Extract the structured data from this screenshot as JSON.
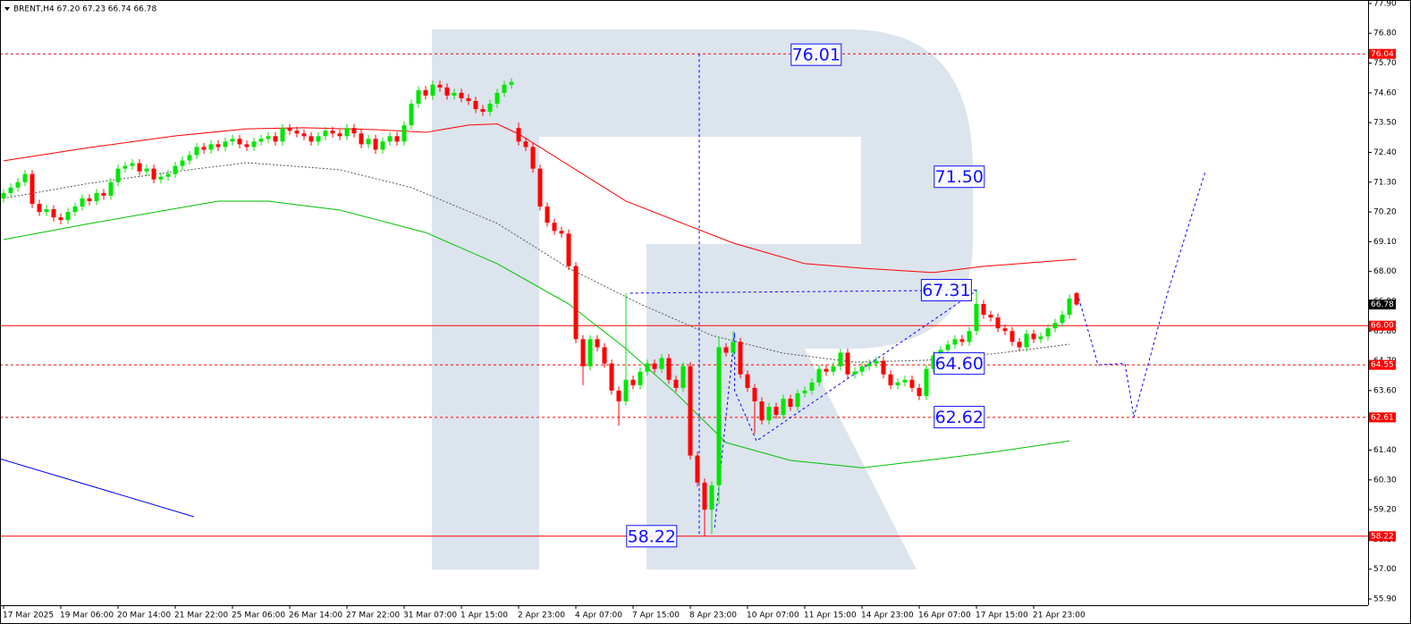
{
  "chart_data": {
    "type": "candlestick",
    "title": "BRENT,H4 67.20 67.23 66.74 66.78",
    "xlim": [
      -0.5,
      190.75
    ],
    "ylim": [
      55.67,
      78.03
    ],
    "xticks": [
      {
        "value": 0,
        "label": "17 Mar 2025"
      },
      {
        "value": 8,
        "label": "19 Mar 06:00"
      },
      {
        "value": 16,
        "label": "20 Mar 14:00"
      },
      {
        "value": 24,
        "label": "21 Mar 22:00"
      },
      {
        "value": 32,
        "label": "25 Mar 06:00"
      },
      {
        "value": 40,
        "label": "26 Mar 14:00"
      },
      {
        "value": 48,
        "label": "27 Mar 22:00"
      },
      {
        "value": 56,
        "label": "31 Mar 07:00"
      },
      {
        "value": 64,
        "label": "1 Apr 15:00"
      },
      {
        "value": 72,
        "label": "2 Apr 23:00"
      },
      {
        "value": 80,
        "label": "4 Apr 07:00"
      },
      {
        "value": 88,
        "label": "7 Apr 15:00"
      },
      {
        "value": 96,
        "label": "8 Apr 23:00"
      },
      {
        "value": 104,
        "label": "10 Apr 07:00"
      },
      {
        "value": 112,
        "label": "11 Apr 15:00"
      },
      {
        "value": 120,
        "label": "14 Apr 23:00"
      },
      {
        "value": 128,
        "label": "16 Apr 07:00"
      },
      {
        "value": 136,
        "label": "17 Apr 15:00"
      },
      {
        "value": 144,
        "label": "21 Apr 23:00"
      }
    ],
    "yticks": [
      {
        "value": 77.9,
        "label": "77.90"
      },
      {
        "value": 76.8,
        "label": "76.80"
      },
      {
        "value": 75.7,
        "label": "75.70"
      },
      {
        "value": 74.6,
        "label": "74.60"
      },
      {
        "value": 73.5,
        "label": "73.50"
      },
      {
        "value": 72.4,
        "label": "72.40"
      },
      {
        "value": 71.3,
        "label": "71.30"
      },
      {
        "value": 70.2,
        "label": "70.20"
      },
      {
        "value": 69.1,
        "label": "69.10"
      },
      {
        "value": 68.0,
        "label": "68.00"
      },
      {
        "value": 66.9,
        "label": "66.90"
      },
      {
        "value": 65.8,
        "label": "65.80"
      },
      {
        "value": 64.7,
        "label": "64.70"
      },
      {
        "value": 63.6,
        "label": "63.60"
      },
      {
        "value": 62.5,
        "label": "62.50"
      },
      {
        "value": 61.4,
        "label": "61.40"
      },
      {
        "value": 60.3,
        "label": "60.30"
      },
      {
        "value": 59.2,
        "label": "59.20"
      },
      {
        "value": 58.1,
        "label": "58.10"
      },
      {
        "value": 57.0,
        "label": "57.00"
      },
      {
        "value": 55.9,
        "label": "55.90"
      }
    ],
    "up_color": "#00e600",
    "down_color": "#ff0000",
    "candles": [
      [
        70.7,
        71.05,
        70.55,
        70.9
      ],
      [
        70.9,
        71.25,
        70.75,
        71.1
      ],
      [
        71.1,
        71.45,
        70.95,
        71.3
      ],
      [
        71.3,
        71.75,
        71.15,
        71.6
      ],
      [
        71.6,
        71.75,
        70.35,
        70.5
      ],
      [
        70.5,
        70.65,
        70.05,
        70.2
      ],
      [
        70.2,
        70.45,
        70.05,
        70.3
      ],
      [
        70.3,
        70.45,
        69.85,
        70.0
      ],
      [
        70.0,
        70.15,
        69.75,
        69.9
      ],
      [
        69.9,
        70.35,
        69.75,
        70.2
      ],
      [
        70.2,
        70.55,
        70.05,
        70.4
      ],
      [
        70.4,
        70.85,
        70.25,
        70.7
      ],
      [
        70.7,
        70.85,
        70.45,
        70.6
      ],
      [
        70.6,
        71.05,
        70.45,
        70.9
      ],
      [
        70.9,
        71.05,
        70.65,
        70.8
      ],
      [
        70.8,
        71.45,
        70.65,
        71.3
      ],
      [
        71.3,
        71.95,
        71.15,
        71.8
      ],
      [
        71.8,
        72.05,
        71.65,
        71.9
      ],
      [
        71.9,
        72.15,
        71.75,
        72.0
      ],
      [
        72.0,
        72.15,
        71.55,
        71.7
      ],
      [
        71.7,
        71.95,
        71.55,
        71.8
      ],
      [
        71.8,
        71.95,
        71.25,
        71.4
      ],
      [
        71.4,
        71.65,
        71.25,
        71.5
      ],
      [
        71.5,
        71.75,
        71.35,
        71.6
      ],
      [
        71.6,
        72.05,
        71.45,
        71.9
      ],
      [
        71.9,
        72.25,
        71.75,
        72.1
      ],
      [
        72.1,
        72.45,
        71.95,
        72.3
      ],
      [
        72.3,
        72.75,
        72.15,
        72.6
      ],
      [
        72.6,
        72.75,
        72.35,
        72.5
      ],
      [
        72.5,
        72.85,
        72.35,
        72.7
      ],
      [
        72.7,
        72.85,
        72.45,
        72.6
      ],
      [
        72.6,
        72.95,
        72.45,
        72.8
      ],
      [
        72.8,
        73.05,
        72.65,
        72.9
      ],
      [
        72.9,
        73.05,
        72.55,
        72.7
      ],
      [
        72.7,
        72.85,
        72.45,
        72.6
      ],
      [
        72.6,
        72.95,
        72.45,
        72.8
      ],
      [
        72.8,
        73.05,
        72.65,
        72.9
      ],
      [
        72.9,
        73.15,
        72.75,
        73.0
      ],
      [
        73.0,
        73.15,
        72.65,
        72.8
      ],
      [
        72.8,
        73.45,
        72.65,
        73.3
      ],
      [
        73.3,
        73.45,
        73.05,
        73.2
      ],
      [
        73.2,
        73.35,
        72.95,
        73.1
      ],
      [
        73.1,
        73.25,
        72.85,
        73.0
      ],
      [
        73.0,
        73.15,
        72.65,
        72.8
      ],
      [
        72.8,
        73.15,
        72.65,
        73.0
      ],
      [
        73.0,
        73.35,
        72.85,
        73.2
      ],
      [
        73.2,
        73.35,
        72.95,
        73.1
      ],
      [
        73.1,
        73.25,
        72.85,
        73.0
      ],
      [
        73.0,
        73.45,
        72.85,
        73.3
      ],
      [
        73.3,
        73.45,
        72.95,
        73.1
      ],
      [
        73.1,
        73.25,
        72.55,
        72.7
      ],
      [
        72.7,
        73.05,
        72.55,
        72.9
      ],
      [
        72.9,
        73.05,
        72.35,
        72.5
      ],
      [
        72.5,
        72.95,
        72.35,
        72.8
      ],
      [
        72.8,
        73.15,
        72.65,
        73.0
      ],
      [
        73.0,
        73.15,
        72.65,
        72.8
      ],
      [
        72.8,
        73.55,
        72.65,
        73.4
      ],
      [
        73.4,
        74.35,
        73.25,
        74.2
      ],
      [
        74.2,
        74.85,
        74.05,
        74.7
      ],
      [
        74.7,
        74.85,
        74.35,
        74.5
      ],
      [
        74.5,
        75.05,
        74.35,
        74.9
      ],
      [
        74.9,
        75.05,
        74.65,
        74.8
      ],
      [
        74.8,
        74.95,
        74.35,
        74.5
      ],
      [
        74.5,
        74.75,
        74.35,
        74.6
      ],
      [
        74.6,
        74.75,
        74.25,
        74.4
      ],
      [
        74.4,
        74.55,
        74.15,
        74.3
      ],
      [
        74.3,
        74.45,
        73.85,
        74.0
      ],
      [
        74.0,
        74.15,
        73.75,
        73.9
      ],
      [
        73.9,
        74.35,
        73.75,
        74.2
      ],
      [
        74.2,
        74.75,
        74.05,
        74.6
      ],
      [
        74.6,
        75.05,
        74.45,
        74.9
      ],
      [
        74.9,
        75.15,
        74.75,
        75.0
      ],
      [
        73.3,
        73.5,
        72.65,
        72.8
      ],
      [
        72.8,
        72.95,
        72.45,
        72.6
      ],
      [
        72.6,
        72.75,
        71.65,
        71.8
      ],
      [
        71.8,
        71.95,
        70.25,
        70.4
      ],
      [
        70.4,
        70.55,
        69.65,
        69.8
      ],
      [
        69.8,
        69.95,
        69.35,
        69.5
      ],
      [
        69.5,
        69.65,
        69.25,
        69.4
      ],
      [
        69.4,
        69.55,
        68.05,
        68.2
      ],
      [
        68.2,
        68.35,
        65.35,
        65.5
      ],
      [
        65.5,
        65.65,
        63.8,
        64.5
      ],
      [
        64.5,
        65.65,
        64.35,
        65.5
      ],
      [
        65.5,
        65.65,
        65.05,
        65.2
      ],
      [
        65.2,
        65.35,
        64.45,
        64.6
      ],
      [
        64.6,
        64.75,
        63.45,
        63.6
      ],
      [
        63.6,
        63.75,
        62.3,
        63.2
      ],
      [
        63.2,
        67.2,
        63.05,
        64.0
      ],
      [
        64.0,
        64.15,
        63.65,
        63.8
      ],
      [
        63.8,
        64.45,
        63.65,
        64.3
      ],
      [
        64.3,
        64.75,
        64.15,
        64.6
      ],
      [
        64.6,
        64.75,
        64.25,
        64.4
      ],
      [
        64.4,
        64.95,
        64.25,
        64.8
      ],
      [
        64.8,
        64.95,
        63.85,
        64.0
      ],
      [
        64.0,
        64.15,
        63.55,
        63.7
      ],
      [
        63.7,
        64.65,
        63.55,
        64.5
      ],
      [
        64.5,
        64.65,
        61.05,
        61.2
      ],
      [
        61.2,
        61.35,
        60.05,
        60.2
      ],
      [
        60.2,
        60.35,
        58.22,
        59.2
      ],
      [
        59.2,
        60.25,
        58.3,
        60.1
      ],
      [
        60.1,
        65.6,
        59.4,
        65.2
      ],
      [
        65.2,
        65.35,
        64.85,
        65.0
      ],
      [
        65.0,
        65.8,
        64.85,
        65.4
      ],
      [
        65.4,
        65.55,
        64.05,
        64.2
      ],
      [
        64.2,
        64.35,
        63.55,
        63.7
      ],
      [
        63.7,
        63.85,
        62.0,
        63.2
      ],
      [
        63.2,
        63.35,
        62.35,
        62.5
      ],
      [
        62.5,
        63.15,
        62.35,
        63.0
      ],
      [
        63.0,
        63.15,
        62.55,
        62.7
      ],
      [
        62.7,
        63.45,
        62.55,
        63.3
      ],
      [
        63.3,
        63.45,
        62.85,
        63.0
      ],
      [
        63.0,
        63.65,
        62.85,
        63.5
      ],
      [
        63.5,
        63.75,
        63.35,
        63.6
      ],
      [
        63.6,
        64.05,
        63.45,
        63.9
      ],
      [
        63.9,
        64.55,
        63.75,
        64.4
      ],
      [
        64.4,
        64.55,
        64.15,
        64.3
      ],
      [
        64.3,
        64.65,
        64.15,
        64.5
      ],
      [
        64.5,
        65.15,
        64.35,
        65.0
      ],
      [
        65.0,
        65.15,
        64.05,
        64.2
      ],
      [
        64.2,
        64.45,
        64.05,
        64.3
      ],
      [
        64.3,
        64.65,
        64.15,
        64.5
      ],
      [
        64.5,
        64.75,
        64.35,
        64.6
      ],
      [
        64.6,
        64.85,
        64.45,
        64.7
      ],
      [
        64.7,
        64.85,
        64.05,
        64.2
      ],
      [
        64.2,
        64.35,
        63.65,
        63.8
      ],
      [
        63.8,
        64.05,
        63.65,
        63.9
      ],
      [
        63.9,
        64.15,
        63.75,
        64.0
      ],
      [
        64.0,
        64.15,
        63.55,
        63.7
      ],
      [
        63.7,
        63.85,
        63.25,
        63.4
      ],
      [
        63.4,
        64.55,
        63.25,
        64.4
      ],
      [
        64.4,
        65.05,
        64.25,
        64.9
      ],
      [
        64.9,
        65.25,
        64.75,
        65.1
      ],
      [
        65.1,
        65.45,
        64.95,
        65.3
      ],
      [
        65.3,
        65.65,
        65.15,
        65.5
      ],
      [
        65.5,
        65.65,
        65.25,
        65.4
      ],
      [
        65.4,
        65.95,
        65.25,
        65.8
      ],
      [
        65.8,
        67.31,
        65.65,
        66.8
      ],
      [
        66.8,
        66.95,
        66.25,
        66.4
      ],
      [
        66.4,
        66.55,
        66.15,
        66.3
      ],
      [
        66.3,
        66.45,
        65.75,
        65.9
      ],
      [
        65.9,
        66.05,
        65.65,
        65.8
      ],
      [
        65.8,
        65.95,
        65.25,
        65.4
      ],
      [
        65.4,
        65.55,
        65.05,
        65.2
      ],
      [
        65.2,
        65.85,
        65.05,
        65.7
      ],
      [
        65.7,
        65.85,
        65.35,
        65.5
      ],
      [
        65.5,
        65.75,
        65.35,
        65.6
      ],
      [
        65.6,
        66.05,
        65.45,
        65.9
      ],
      [
        65.9,
        66.25,
        65.75,
        66.1
      ],
      [
        66.1,
        66.55,
        65.95,
        66.4
      ],
      [
        66.4,
        67.15,
        66.25,
        67.0
      ],
      [
        67.2,
        67.23,
        66.74,
        66.78
      ]
    ],
    "series": [
      {
        "color": "#ff0000",
        "style": "solid",
        "x": [
          0,
          12,
          24,
          34,
          42,
          52,
          59,
          65,
          69,
          72,
          80,
          87,
          95,
          102,
          112,
          120,
          130,
          137,
          150
        ],
        "values": [
          72.09,
          72.58,
          73.01,
          73.27,
          73.31,
          73.24,
          73.14,
          73.41,
          73.45,
          73.08,
          71.76,
          70.6,
          69.77,
          69.05,
          68.29,
          68.12,
          67.96,
          68.19,
          68.45
        ]
      },
      {
        "color": "#555555",
        "style": "dotted",
        "x": [
          0,
          12,
          24,
          34,
          47,
          57,
          69,
          79,
          89,
          99,
          109,
          119,
          129,
          139,
          149
        ],
        "values": [
          70.7,
          71.26,
          71.69,
          72.02,
          71.76,
          71.1,
          69.78,
          68.12,
          66.8,
          65.64,
          64.98,
          64.65,
          64.72,
          64.98,
          65.31
        ]
      },
      {
        "color": "#00c000",
        "style": "solid",
        "x": [
          0,
          12,
          30,
          37,
          47,
          59,
          69,
          79,
          87,
          94,
          101,
          110,
          120,
          129,
          139,
          149
        ],
        "values": [
          69.18,
          69.77,
          70.6,
          70.6,
          70.27,
          69.44,
          68.29,
          66.8,
          65.15,
          63.5,
          61.68,
          61.02,
          60.75,
          61.02,
          61.35,
          61.74
        ]
      },
      {
        "color": "#0000ff",
        "style": "solid",
        "x": [
          -0.5,
          26.6
        ],
        "values": [
          61.08,
          58.94
        ]
      },
      {
        "color": "#0000ff",
        "style": "dashed",
        "x": [
          97.25,
          97.25
        ],
        "values": [
          76.04,
          58.22
        ]
      },
      {
        "color": "#0000ff",
        "style": "dashed",
        "x": [
          87.6,
          136.1
        ],
        "values": [
          67.2,
          67.31
        ]
      },
      {
        "color": "#0000ff",
        "style": "dashed",
        "x": [
          99.4,
          102.2,
          102.2,
          105.25,
          136.1
        ],
        "values": [
          58.54,
          65.74,
          63.6,
          61.74,
          67.31
        ]
      },
      {
        "color": "#0000ff",
        "style": "dashed",
        "x": [
          150.1,
          153,
          156.75,
          157.4,
          158,
          162.6,
          168
        ],
        "values": [
          67.2,
          64.55,
          64.6,
          63.6,
          62.62,
          67.1,
          71.7
        ]
      }
    ],
    "levels": [
      {
        "value": 76.04,
        "label": "76.04",
        "style": "dashed"
      },
      {
        "value": 66.0,
        "label": "66.00",
        "style": "solid"
      },
      {
        "value": 64.55,
        "label": "64.55",
        "style": "dashed"
      },
      {
        "value": 62.61,
        "label": "62.61",
        "style": "dashed"
      },
      {
        "value": 58.22,
        "label": "58.22",
        "style": "solid"
      }
    ],
    "level_color": "#ff0000",
    "last_price": {
      "value": 66.78,
      "label": "66.78"
    },
    "annotations": [
      {
        "value": 76.01,
        "label": "76.01",
        "x": 113.6
      },
      {
        "value": 71.5,
        "label": "71.50",
        "x": 133.6
      },
      {
        "value": 67.31,
        "label": "67.31",
        "x": 131.8
      },
      {
        "value": 64.6,
        "label": "64.60",
        "x": 133.6
      },
      {
        "value": 62.62,
        "label": "62.62",
        "x": 133.6
      },
      {
        "value": 58.22,
        "label": "58.22",
        "x": 90.6
      }
    ]
  }
}
